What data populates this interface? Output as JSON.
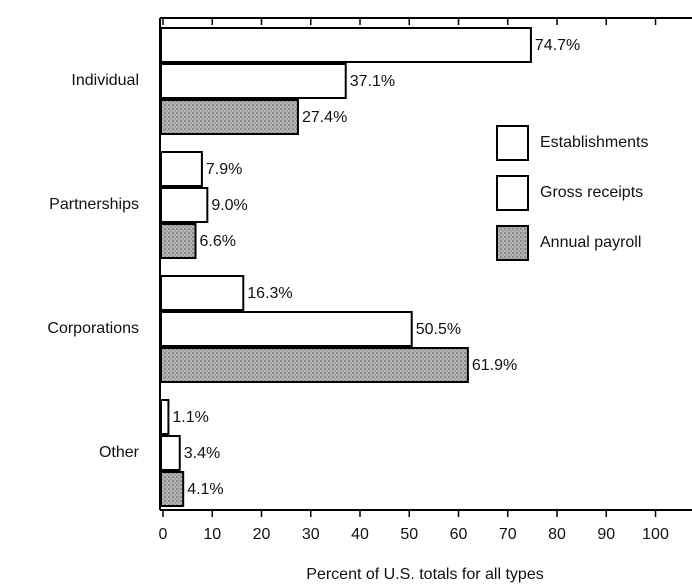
{
  "chart_data": {
    "type": "bar",
    "orientation": "horizontal",
    "xlabel": "Percent of U.S. totals for all types",
    "categories": [
      "Individual",
      "Partnerships",
      "Corporations",
      "Other"
    ],
    "series": [
      {
        "name": "Establishments",
        "color": "#ffffff",
        "values": [
          74.7,
          7.9,
          16.3,
          1.1
        ],
        "value_labels": [
          "74.7%",
          "7.9%",
          "16.3%",
          "1.1%"
        ]
      },
      {
        "name": "Gross receipts",
        "color": "#ffffff",
        "values": [
          37.1,
          9.0,
          50.5,
          3.4
        ],
        "value_labels": [
          "37.1%",
          "9.0%",
          "50.5%",
          "3.4%"
        ]
      },
      {
        "name": "Annual payroll",
        "color": "#b4b4b4",
        "values": [
          27.4,
          6.6,
          61.9,
          4.1
        ],
        "value_labels": [
          "27.4%",
          "6.6%",
          "61.9%",
          "4.1%"
        ]
      }
    ],
    "xlim": [
      0,
      107
    ],
    "xticks": [
      0,
      10,
      20,
      30,
      40,
      50,
      60,
      70,
      80,
      90,
      100
    ],
    "legend": "right"
  }
}
